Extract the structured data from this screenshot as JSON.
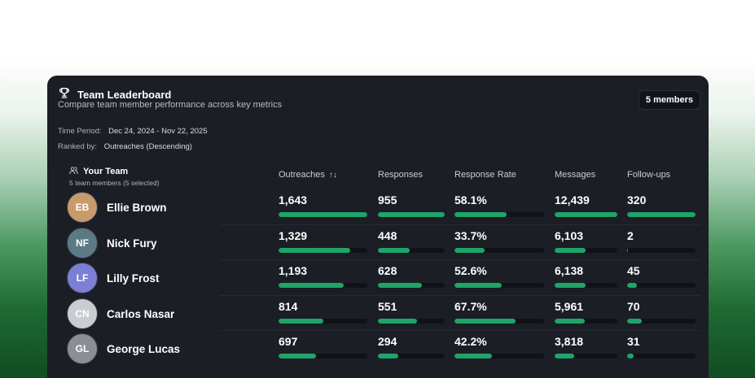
{
  "header": {
    "title": "Team Leaderboard",
    "subtitle": "Compare team member performance across key metrics",
    "badge": "5 members"
  },
  "meta": {
    "period_label": "Time Period:",
    "period_value": "Dec 24, 2024 - Nov 22, 2025",
    "ranked_label": "Ranked by:",
    "ranked_value": "Outreaches (Descending)"
  },
  "team": {
    "title": "Your Team",
    "subtitle": "5 team members (5 selected)"
  },
  "columns": [
    "Outreaches",
    "Responses",
    "Response Rate",
    "Messages",
    "Follow-ups"
  ],
  "colors": {
    "accent": "#1fa46a",
    "card": "#1b1e25",
    "track": "#0f1217"
  },
  "members": [
    {
      "name": "Ellie Brown",
      "avatar_color": "#c99a6b",
      "initials": "EB",
      "metrics": [
        {
          "value": "1,643",
          "fill": 1.0
        },
        {
          "value": "955",
          "fill": 1.0
        },
        {
          "value": "58.1%",
          "fill": 0.58
        },
        {
          "value": "12,439",
          "fill": 1.0
        },
        {
          "value": "320",
          "fill": 1.0
        }
      ]
    },
    {
      "name": "Nick Fury",
      "avatar_color": "#5b7a86",
      "initials": "NF",
      "metrics": [
        {
          "value": "1,329",
          "fill": 0.81
        },
        {
          "value": "448",
          "fill": 0.47
        },
        {
          "value": "33.7%",
          "fill": 0.34
        },
        {
          "value": "6,103",
          "fill": 0.49
        },
        {
          "value": "2",
          "fill": 0.01
        }
      ]
    },
    {
      "name": "Lilly Frost",
      "avatar_color": "#7b7fd6",
      "initials": "LF",
      "metrics": [
        {
          "value": "1,193",
          "fill": 0.73
        },
        {
          "value": "628",
          "fill": 0.66
        },
        {
          "value": "52.6%",
          "fill": 0.53
        },
        {
          "value": "6,138",
          "fill": 0.49
        },
        {
          "value": "45",
          "fill": 0.14
        }
      ]
    },
    {
      "name": "Carlos Nasar",
      "avatar_color": "#c9ccd1",
      "initials": "CN",
      "metrics": [
        {
          "value": "814",
          "fill": 0.5
        },
        {
          "value": "551",
          "fill": 0.58
        },
        {
          "value": "67.7%",
          "fill": 0.68
        },
        {
          "value": "5,961",
          "fill": 0.48
        },
        {
          "value": "70",
          "fill": 0.22
        }
      ]
    },
    {
      "name": "George Lucas",
      "avatar_color": "#8a8f96",
      "initials": "GL",
      "metrics": [
        {
          "value": "697",
          "fill": 0.42
        },
        {
          "value": "294",
          "fill": 0.31
        },
        {
          "value": "42.2%",
          "fill": 0.42
        },
        {
          "value": "3,818",
          "fill": 0.31
        },
        {
          "value": "31",
          "fill": 0.1
        }
      ]
    }
  ]
}
